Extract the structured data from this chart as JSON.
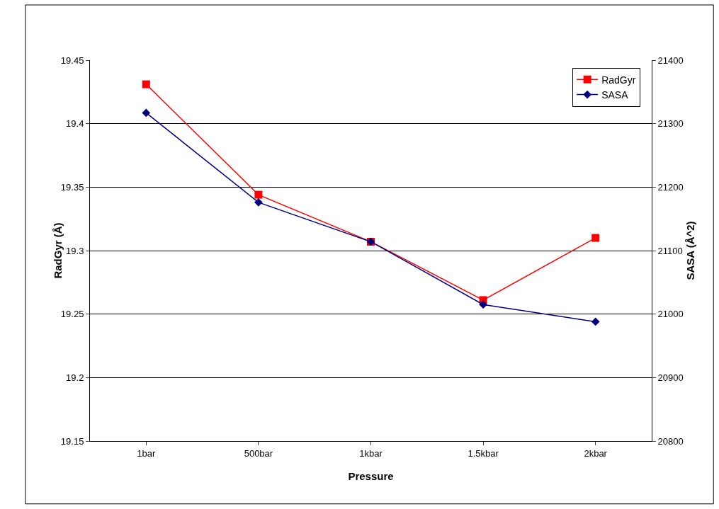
{
  "chart_data": {
    "type": "line",
    "xlabel": "Pressure",
    "ylabel": "RadGyr (Å)",
    "y2label": "SASA (Å^2)",
    "categories": [
      "1bar",
      "500bar",
      "1kbar",
      "1.5kbar",
      "2kbar"
    ],
    "series": [
      {
        "name": "RadGyr",
        "color": "#ff0000",
        "values": [
          19.431,
          19.344,
          19.307,
          19.261,
          19.31
        ],
        "marker": "square"
      },
      {
        "name": "SASA",
        "color": "#000080",
        "values": [
          21317,
          21176,
          21114,
          21015,
          20988
        ],
        "marker": "diamond",
        "axis": "y2"
      }
    ],
    "ylim": [
      19.15,
      19.45
    ],
    "yticks": [
      19.15,
      19.2,
      19.25,
      19.3,
      19.35,
      19.4,
      19.45
    ],
    "y2lim": [
      20800,
      21400
    ],
    "y2ticks": [
      20800,
      20900,
      21000,
      21100,
      21200,
      21300,
      21400
    ],
    "grid": "y",
    "legend": "top right",
    "line_style": "solid"
  }
}
